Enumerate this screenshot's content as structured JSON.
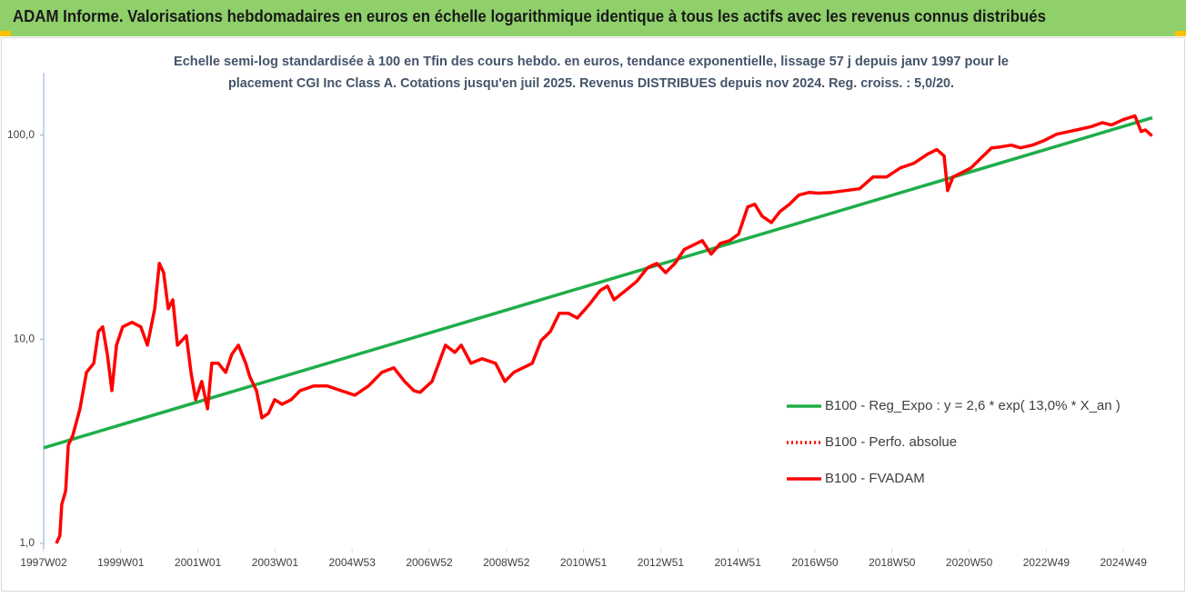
{
  "chart_data": {
    "type": "line",
    "title": "ADAM Informe. Valorisations hebdomadaires en euros en échelle logarithmique identique à tous les actifs avec les revenus connus distribués",
    "subtitle": [
      "Echelle semi-log standardisée à 100 en Tfin des cours hebdo. en euros, tendance exponentielle, lissage 57 j depuis janv 1997 pour le",
      "placement CGI Inc Class A. Cotations jusqu'en juil 2025. Revenus DISTRIBUES depuis nov 2024. Reg. croiss. : 5,0/20."
    ],
    "xlim": [
      1997.0,
      2025.75
    ],
    "xticks": [
      {
        "value": 1997.0,
        "label": "1997W02"
      },
      {
        "value": 1999.0,
        "label": "1999W01"
      },
      {
        "value": 2001.0,
        "label": "2001W01"
      },
      {
        "value": 2003.0,
        "label": "2003W01"
      },
      {
        "value": 2005.0,
        "label": "2004W53"
      },
      {
        "value": 2007.0,
        "label": "2006W52"
      },
      {
        "value": 2009.0,
        "label": "2008W52"
      },
      {
        "value": 2011.0,
        "label": "2010W51"
      },
      {
        "value": 2013.0,
        "label": "2012W51"
      },
      {
        "value": 2015.0,
        "label": "2014W51"
      },
      {
        "value": 2017.0,
        "label": "2016W50"
      },
      {
        "value": 2019.0,
        "label": "2018W50"
      },
      {
        "value": 2021.0,
        "label": "2020W50"
      },
      {
        "value": 2023.0,
        "label": "2022W49"
      },
      {
        "value": 2025.0,
        "label": "2024W49"
      }
    ],
    "ylim": [
      1,
      200
    ],
    "log_scale_y": true,
    "yticks": [
      {
        "value": 1,
        "label": "1,0"
      },
      {
        "value": 10,
        "label": "10,0"
      },
      {
        "value": 100,
        "label": "100,0"
      }
    ],
    "grid": false,
    "legend": "right",
    "series": [
      {
        "name": "B100 - Reg_Expo : y = 2,6 * exp( 13,0% *  X_an )",
        "color": "#1fae4a",
        "style": "solid",
        "x": [
          1997.0,
          2025.75
        ],
        "values": [
          2.94,
          121.6
        ]
      },
      {
        "name": "B100 - Perfo. absolue",
        "color": "#ff0000",
        "style": "dotted",
        "x": [],
        "values": []
      },
      {
        "name": "B100 - FVADAM",
        "color": "#ff0000",
        "style": "solid",
        "x": [
          1997.33,
          1997.42,
          1997.47,
          1997.57,
          1997.64,
          1997.75,
          1997.94,
          1998.11,
          1998.3,
          1998.42,
          1998.53,
          1998.65,
          1998.77,
          1998.89,
          1999.05,
          1999.29,
          1999.52,
          1999.69,
          1999.88,
          2000.0,
          2000.11,
          2000.23,
          2000.35,
          2000.47,
          2000.7,
          2000.82,
          2000.94,
          2001.1,
          2001.25,
          2001.36,
          2001.53,
          2001.72,
          2001.88,
          2002.05,
          2002.24,
          2002.35,
          2002.52,
          2002.66,
          2002.83,
          2002.99,
          2003.18,
          2003.42,
          2003.65,
          2004.0,
          2004.36,
          2004.71,
          2005.07,
          2005.42,
          2005.77,
          2006.08,
          2006.36,
          2006.6,
          2006.76,
          2007.07,
          2007.42,
          2007.66,
          2007.83,
          2008.08,
          2008.37,
          2008.72,
          2008.96,
          2009.19,
          2009.43,
          2009.67,
          2009.9,
          2010.14,
          2010.37,
          2010.61,
          2010.84,
          2011.15,
          2011.43,
          2011.62,
          2011.79,
          2012.09,
          2012.38,
          2012.66,
          2012.9,
          2013.13,
          2013.37,
          2013.61,
          2013.84,
          2014.08,
          2014.31,
          2014.55,
          2014.79,
          2015.02,
          2015.26,
          2015.44,
          2015.63,
          2015.87,
          2016.1,
          2016.34,
          2016.58,
          2016.86,
          2017.09,
          2017.45,
          2017.8,
          2018.16,
          2018.51,
          2018.86,
          2019.22,
          2019.57,
          2019.92,
          2020.16,
          2020.35,
          2020.44,
          2020.58,
          2020.82,
          2021.05,
          2021.29,
          2021.58,
          2021.81,
          2022.09,
          2022.33,
          2022.64,
          2022.94,
          2023.27,
          2023.58,
          2023.89,
          2024.17,
          2024.45,
          2024.69,
          2024.99,
          2025.3,
          2025.46,
          2025.57,
          2025.74
        ],
        "values": [
          1.0,
          1.09,
          1.55,
          1.81,
          3.03,
          3.35,
          4.56,
          6.88,
          7.62,
          10.9,
          11.5,
          8.44,
          5.6,
          9.35,
          11.5,
          12.1,
          11.5,
          9.35,
          14.1,
          23.5,
          21.2,
          14.1,
          15.6,
          9.35,
          10.4,
          6.88,
          5.06,
          6.21,
          4.56,
          7.62,
          7.62,
          6.88,
          8.44,
          9.35,
          7.62,
          6.53,
          5.6,
          4.12,
          4.34,
          5.06,
          4.8,
          5.06,
          5.6,
          5.9,
          5.9,
          5.6,
          5.32,
          5.9,
          6.88,
          7.24,
          6.21,
          5.6,
          5.49,
          6.21,
          9.35,
          8.62,
          9.35,
          7.62,
          8.02,
          7.62,
          6.21,
          6.88,
          7.24,
          7.62,
          9.85,
          10.9,
          13.4,
          13.4,
          12.7,
          14.8,
          17.3,
          18.2,
          15.6,
          17.3,
          19.2,
          22.4,
          23.5,
          21.2,
          23.5,
          27.5,
          28.9,
          30.4,
          26.1,
          29.5,
          30.4,
          32.7,
          44.5,
          45.8,
          40.1,
          37.3,
          42.3,
          45.8,
          50.8,
          52.4,
          51.9,
          52.4,
          53.5,
          54.6,
          62.4,
          62.4,
          69.1,
          72.8,
          80.6,
          84.9,
          79.0,
          53.5,
          62.4,
          65.6,
          69.1,
          76.6,
          86.6,
          87.5,
          89.3,
          86.6,
          89.3,
          94.0,
          101,
          104,
          107,
          110,
          115,
          112,
          119,
          124,
          104,
          106,
          99.0
        ]
      }
    ]
  }
}
